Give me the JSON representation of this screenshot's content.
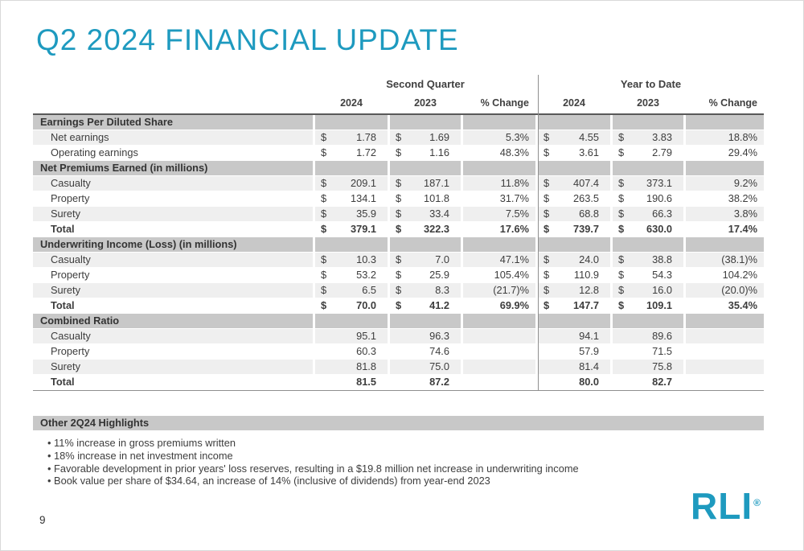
{
  "colors": {
    "accent": "#1E9ABF",
    "section_bg": "#C8C8C8",
    "shade_bg": "#EFEFEF",
    "divider": "#8F8F8F"
  },
  "title": "Q2 2024 FINANCIAL UPDATE",
  "page_number": "9",
  "logo": {
    "text": "RLI",
    "registered_mark": "®"
  },
  "table": {
    "group_headers": [
      "Second Quarter",
      "Year to Date"
    ],
    "col_headers": [
      "2024",
      "2023",
      "% Change",
      "2024",
      "2023",
      "% Change"
    ],
    "sections": [
      {
        "header": "Earnings Per Diluted Share",
        "rows": [
          {
            "label": "Net earnings",
            "bold": false,
            "values": [
              {
                "currency": "$",
                "amount": "1.78"
              },
              {
                "currency": "$",
                "amount": "1.69"
              },
              {
                "amount": "5.3%"
              },
              {
                "currency": "$",
                "amount": "4.55"
              },
              {
                "currency": "$",
                "amount": "3.83"
              },
              {
                "amount": "18.8%"
              }
            ]
          },
          {
            "label": "Operating earnings",
            "bold": false,
            "values": [
              {
                "currency": "$",
                "amount": "1.72"
              },
              {
                "currency": "$",
                "amount": "1.16"
              },
              {
                "amount": "48.3%"
              },
              {
                "currency": "$",
                "amount": "3.61"
              },
              {
                "currency": "$",
                "amount": "2.79"
              },
              {
                "amount": "29.4%"
              }
            ]
          }
        ]
      },
      {
        "header": "Net Premiums Earned (in millions)",
        "rows": [
          {
            "label": "Casualty",
            "bold": false,
            "values": [
              {
                "currency": "$",
                "amount": "209.1"
              },
              {
                "currency": "$",
                "amount": "187.1"
              },
              {
                "amount": "11.8%"
              },
              {
                "currency": "$",
                "amount": "407.4"
              },
              {
                "currency": "$",
                "amount": "373.1"
              },
              {
                "amount": "9.2%"
              }
            ]
          },
          {
            "label": "Property",
            "bold": false,
            "values": [
              {
                "currency": "$",
                "amount": "134.1"
              },
              {
                "currency": "$",
                "amount": "101.8"
              },
              {
                "amount": "31.7%"
              },
              {
                "currency": "$",
                "amount": "263.5"
              },
              {
                "currency": "$",
                "amount": "190.6"
              },
              {
                "amount": "38.2%"
              }
            ]
          },
          {
            "label": "Surety",
            "bold": false,
            "values": [
              {
                "currency": "$",
                "amount": "35.9"
              },
              {
                "currency": "$",
                "amount": "33.4"
              },
              {
                "amount": "7.5%"
              },
              {
                "currency": "$",
                "amount": "68.8"
              },
              {
                "currency": "$",
                "amount": "66.3"
              },
              {
                "amount": "3.8%"
              }
            ]
          },
          {
            "label": "Total",
            "bold": true,
            "values": [
              {
                "currency": "$",
                "amount": "379.1"
              },
              {
                "currency": "$",
                "amount": "322.3"
              },
              {
                "amount": "17.6%"
              },
              {
                "currency": "$",
                "amount": "739.7"
              },
              {
                "currency": "$",
                "amount": "630.0"
              },
              {
                "amount": "17.4%"
              }
            ]
          }
        ]
      },
      {
        "header": "Underwriting Income (Loss) (in millions)",
        "rows": [
          {
            "label": "Casualty",
            "bold": false,
            "values": [
              {
                "currency": "$",
                "amount": "10.3"
              },
              {
                "currency": "$",
                "amount": "7.0"
              },
              {
                "amount": "47.1%"
              },
              {
                "currency": "$",
                "amount": "24.0"
              },
              {
                "currency": "$",
                "amount": "38.8"
              },
              {
                "amount": "(38.1)%"
              }
            ]
          },
          {
            "label": "Property",
            "bold": false,
            "values": [
              {
                "currency": "$",
                "amount": "53.2"
              },
              {
                "currency": "$",
                "amount": "25.9"
              },
              {
                "amount": "105.4%"
              },
              {
                "currency": "$",
                "amount": "110.9"
              },
              {
                "currency": "$",
                "amount": "54.3"
              },
              {
                "amount": "104.2%"
              }
            ]
          },
          {
            "label": "Surety",
            "bold": false,
            "values": [
              {
                "currency": "$",
                "amount": "6.5"
              },
              {
                "currency": "$",
                "amount": "8.3"
              },
              {
                "amount": "(21.7)%"
              },
              {
                "currency": "$",
                "amount": "12.8"
              },
              {
                "currency": "$",
                "amount": "16.0"
              },
              {
                "amount": "(20.0)%"
              }
            ]
          },
          {
            "label": "Total",
            "bold": true,
            "values": [
              {
                "currency": "$",
                "amount": "70.0"
              },
              {
                "currency": "$",
                "amount": "41.2"
              },
              {
                "amount": "69.9%"
              },
              {
                "currency": "$",
                "amount": "147.7"
              },
              {
                "currency": "$",
                "amount": "109.1"
              },
              {
                "amount": "35.4%"
              }
            ]
          }
        ]
      },
      {
        "header": "Combined Ratio",
        "rows": [
          {
            "label": "Casualty",
            "bold": false,
            "values": [
              {
                "amount": "95.1"
              },
              {
                "amount": "96.3"
              },
              {
                "amount": ""
              },
              {
                "amount": "94.1"
              },
              {
                "amount": "89.6"
              },
              {
                "amount": ""
              }
            ]
          },
          {
            "label": "Property",
            "bold": false,
            "values": [
              {
                "amount": "60.3"
              },
              {
                "amount": "74.6"
              },
              {
                "amount": ""
              },
              {
                "amount": "57.9"
              },
              {
                "amount": "71.5"
              },
              {
                "amount": ""
              }
            ]
          },
          {
            "label": "Surety",
            "bold": false,
            "values": [
              {
                "amount": "81.8"
              },
              {
                "amount": "75.0"
              },
              {
                "amount": ""
              },
              {
                "amount": "81.4"
              },
              {
                "amount": "75.8"
              },
              {
                "amount": ""
              }
            ]
          },
          {
            "label": "Total",
            "bold": true,
            "values": [
              {
                "amount": "81.5"
              },
              {
                "amount": "87.2"
              },
              {
                "amount": ""
              },
              {
                "amount": "80.0"
              },
              {
                "amount": "82.7"
              },
              {
                "amount": ""
              }
            ]
          }
        ]
      }
    ]
  },
  "highlights": {
    "header": "Other 2Q24 Highlights",
    "bullets": [
      "11% increase in gross premiums written",
      "18% increase in net investment income",
      "Favorable development in prior years' loss reserves, resulting in a $19.8 million net increase in underwriting income",
      "Book value per share of $34.64, an increase of 14% (inclusive of dividends) from year-end 2023"
    ]
  }
}
